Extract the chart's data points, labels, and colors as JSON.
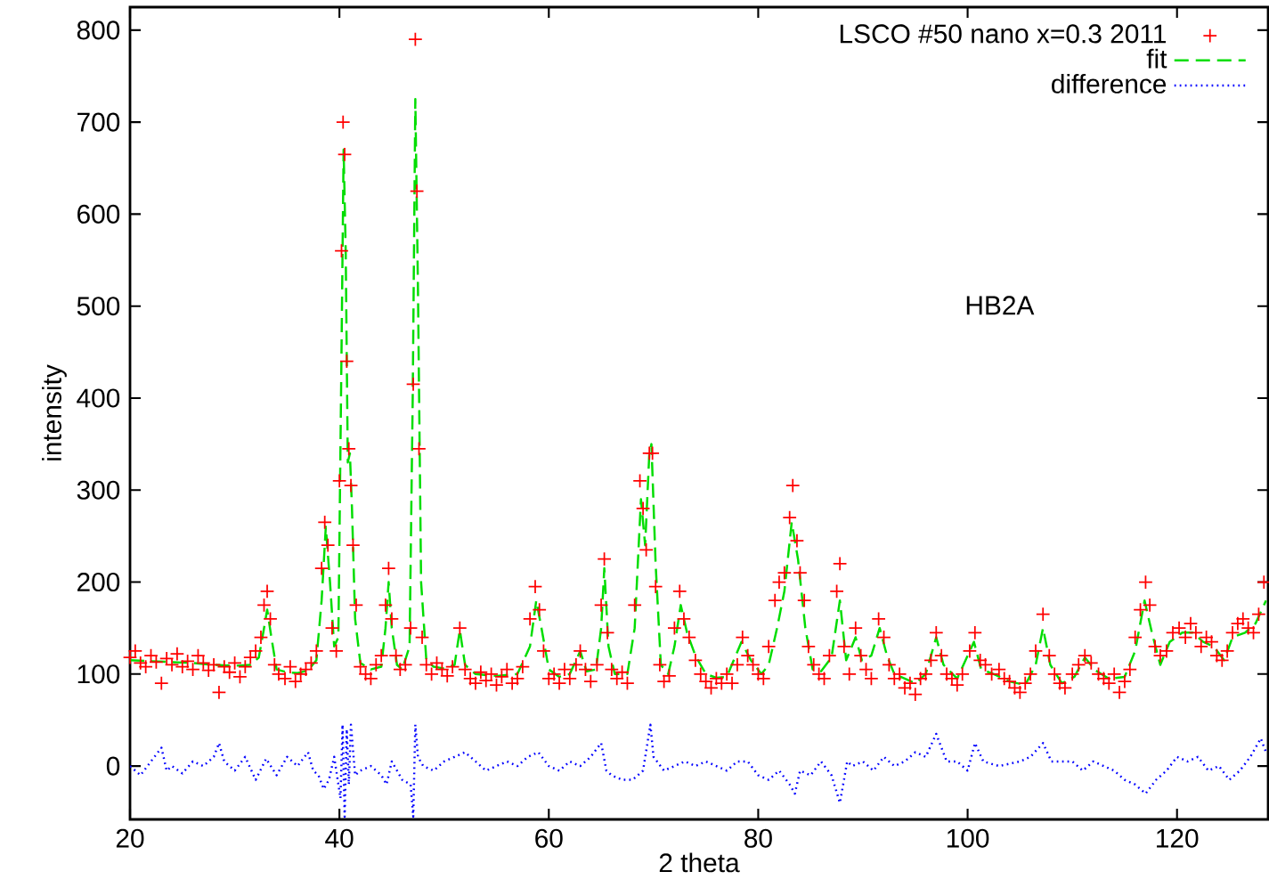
{
  "chart_data": {
    "type": "scatter",
    "xlabel": "2 theta",
    "ylabel": "intensity",
    "xlim": [
      20,
      128.7
    ],
    "ylim": [
      -58,
      825
    ],
    "xticks": [
      20,
      40,
      60,
      80,
      100,
      120
    ],
    "yticks": [
      0,
      100,
      200,
      300,
      400,
      500,
      600,
      700,
      800
    ],
    "grid": false,
    "legend": "top right",
    "annotations": [
      "HB2A"
    ],
    "series": [
      {
        "name": "LSCO #50 nano x=0.3 2011",
        "marker": "cross",
        "color": "#ff0000",
        "x": [
          20,
          20.5,
          21,
          21.5,
          22,
          22.5,
          23,
          23.5,
          24,
          24.5,
          25,
          25.5,
          26,
          26.5,
          27,
          27.5,
          28,
          28.5,
          29,
          29.5,
          30,
          30.5,
          31,
          31.5,
          32,
          32.5,
          32.8,
          33.1,
          33.4,
          33.8,
          34.2,
          34.8,
          35.3,
          35.8,
          36.3,
          36.8,
          37.3,
          37.8,
          38.3,
          38.6,
          38.9,
          39.3,
          39.7,
          40.0,
          40.2,
          40.35,
          40.5,
          40.7,
          40.9,
          41.1,
          41.3,
          41.6,
          42,
          42.5,
          43,
          43.5,
          44,
          44.4,
          44.7,
          45,
          45.4,
          45.8,
          46.3,
          46.8,
          47.05,
          47.25,
          47.4,
          47.6,
          47.9,
          48.3,
          48.8,
          49.3,
          49.8,
          50.3,
          50.8,
          51.5,
          52,
          52.5,
          53,
          53.5,
          54,
          54.5,
          55,
          55.5,
          56,
          56.5,
          57,
          57.5,
          58.2,
          58.7,
          59.1,
          59.5,
          60,
          60.5,
          61,
          61.5,
          62,
          62.6,
          63,
          63.5,
          64,
          64.6,
          65.0,
          65.3,
          65.6,
          66.0,
          66.5,
          67,
          67.5,
          68.2,
          68.7,
          69.0,
          69.3,
          69.6,
          69.9,
          70.2,
          70.6,
          71,
          71.5,
          72,
          72.5,
          72.9,
          73.4,
          74,
          74.5,
          75,
          75.5,
          76,
          76.5,
          77,
          77.5,
          78,
          78.5,
          79,
          79.5,
          80,
          80.5,
          81,
          81.6,
          82,
          82.5,
          83,
          83.3,
          83.7,
          84,
          84.4,
          84.8,
          85.3,
          85.8,
          86.3,
          86.8,
          87.5,
          87.8,
          88.2,
          88.7,
          89.3,
          89.8,
          90.3,
          90.8,
          91.5,
          92,
          92.5,
          93,
          93.5,
          94,
          94.5,
          95,
          95.5,
          96,
          96.5,
          97,
          97.5,
          98,
          98.5,
          99,
          99.5,
          100.2,
          100.7,
          101.2,
          101.7,
          102.3,
          103,
          103.5,
          104,
          104.5,
          105,
          105.5,
          106,
          106.5,
          107.2,
          107.8,
          108.3,
          108.8,
          109.3,
          110,
          110.6,
          111.2,
          111.8,
          112.5,
          113,
          113.5,
          114,
          114.5,
          115,
          115.5,
          116,
          116.5,
          117,
          117.4,
          117.9,
          118.4,
          119,
          119.6,
          120.2,
          120.8,
          121.3,
          121.8,
          122.3,
          122.8,
          123.3,
          123.8,
          124.3,
          124.8,
          125.3,
          125.8,
          126.3,
          126.8,
          127.3,
          127.8,
          128.3
        ],
        "values": [
          118,
          125,
          112,
          108,
          120,
          113,
          90,
          117,
          110,
          122,
          108,
          114,
          105,
          120,
          112,
          104,
          110,
          80,
          108,
          102,
          112,
          97,
          108,
          118,
          125,
          140,
          175,
          190,
          160,
          110,
          100,
          95,
          108,
          92,
          100,
          105,
          112,
          125,
          215,
          265,
          240,
          150,
          125,
          310,
          560,
          700,
          665,
          440,
          345,
          305,
          240,
          175,
          108,
          100,
          95,
          110,
          120,
          175,
          215,
          160,
          120,
          105,
          110,
          150,
          415,
          790,
          625,
          345,
          140,
          110,
          100,
          112,
          105,
          98,
          108,
          150,
          105,
          95,
          90,
          102,
          93,
          100,
          88,
          97,
          105,
          90,
          95,
          108,
          160,
          195,
          170,
          125,
          95,
          100,
          90,
          105,
          95,
          110,
          125,
          105,
          92,
          110,
          175,
          225,
          145,
          105,
          95,
          102,
          90,
          175,
          310,
          280,
          235,
          340,
          340,
          195,
          110,
          92,
          98,
          150,
          190,
          160,
          140,
          115,
          100,
          92,
          85,
          95,
          90,
          100,
          90,
          110,
          140,
          120,
          110,
          100,
          95,
          130,
          180,
          200,
          210,
          270,
          305,
          245,
          210,
          180,
          130,
          110,
          100,
          95,
          120,
          190,
          220,
          130,
          100,
          150,
          120,
          105,
          95,
          160,
          140,
          110,
          95,
          100,
          85,
          90,
          78,
          95,
          100,
          115,
          145,
          120,
          100,
          95,
          88,
          100,
          125,
          145,
          115,
          110,
          100,
          105,
          95,
          92,
          85,
          80,
          90,
          100,
          125,
          165,
          120,
          100,
          90,
          85,
          100,
          110,
          120,
          112,
          100,
          95,
          90,
          100,
          80,
          92,
          105,
          140,
          170,
          200,
          175,
          130,
          120,
          125,
          145,
          150,
          140,
          155,
          145,
          130,
          140,
          135,
          120,
          115,
          125,
          145,
          155,
          160,
          150,
          145,
          165,
          200
        ]
      },
      {
        "name": "fit",
        "type": "line",
        "line_style": "dashed",
        "color": "#00dd00",
        "x": [
          20,
          22,
          24,
          26,
          28,
          30,
          31.5,
          32.3,
          32.8,
          33.1,
          33.5,
          34,
          35,
          36,
          37,
          37.8,
          38.3,
          38.7,
          39.1,
          39.5,
          39.9,
          40.2,
          40.4,
          40.6,
          40.8,
          41.0,
          41.2,
          41.5,
          42,
          43,
          44,
          44.4,
          44.7,
          45,
          45.5,
          46,
          46.7,
          47.0,
          47.25,
          47.5,
          47.8,
          48.3,
          49,
          50,
          51,
          51.5,
          52,
          53,
          55,
          57,
          58.2,
          58.8,
          59.3,
          60,
          61,
          62,
          63,
          63.6,
          64.5,
          65.0,
          65.3,
          65.7,
          66.3,
          67.5,
          68.2,
          68.8,
          69.2,
          69.6,
          69.8,
          70.2,
          70.7,
          71.4,
          72,
          72.6,
          73.2,
          74,
          75,
          76,
          77,
          78.4,
          79.3,
          80.3,
          81,
          81.8,
          82.5,
          83.2,
          83.8,
          84.5,
          85.2,
          86,
          87,
          87.8,
          88.4,
          89.3,
          89.9,
          90.8,
          91.6,
          92.3,
          93,
          94,
          95,
          96,
          97,
          97.7,
          99,
          100.6,
          101.3,
          102.5,
          104,
          105.5,
          106.5,
          107.2,
          107.9,
          109,
          110.2,
          111.2,
          112.2,
          113.5,
          115,
          116,
          116.9,
          117.6,
          118.4,
          119.3,
          120.5,
          121.5,
          122.5,
          123.5,
          124.5,
          125.3,
          126.5,
          127.5,
          128.5
        ],
        "values": [
          115,
          114,
          113,
          112,
          110,
          109,
          110,
          118,
          150,
          170,
          140,
          105,
          102,
          101,
          104,
          115,
          180,
          260,
          200,
          130,
          140,
          450,
          670,
          560,
          330,
          340,
          280,
          160,
          112,
          105,
          108,
          150,
          200,
          150,
          110,
          105,
          130,
          400,
          725,
          520,
          200,
          115,
          108,
          106,
          110,
          148,
          110,
          100,
          98,
          100,
          130,
          180,
          150,
          105,
          97,
          100,
          125,
          103,
          105,
          150,
          215,
          130,
          100,
          100,
          150,
          290,
          240,
          340,
          350,
          220,
          110,
          100,
          130,
          175,
          145,
          120,
          100,
          96,
          97,
          135,
          115,
          100,
          110,
          150,
          190,
          265,
          225,
          150,
          105,
          103,
          118,
          180,
          115,
          140,
          115,
          120,
          150,
          120,
          100,
          95,
          90,
          100,
          140,
          110,
          95,
          135,
          105,
          100,
          92,
          88,
          110,
          150,
          110,
          90,
          97,
          118,
          104,
          95,
          97,
          125,
          180,
          145,
          110,
          135,
          145,
          145,
          135,
          130,
          115,
          140,
          145,
          155,
          180
        ]
      },
      {
        "name": "difference",
        "type": "line",
        "line_style": "dotted",
        "color": "#0000ff",
        "x": [
          20,
          21,
          22,
          23,
          23.5,
          24,
          25,
          26,
          27,
          28,
          28.5,
          29,
          30,
          31,
          32,
          33,
          34,
          35,
          36,
          37,
          37.5,
          38,
          38.5,
          39,
          39.5,
          40.1,
          40.3,
          40.5,
          40.7,
          40.9,
          41.1,
          41.5,
          42,
          43,
          44,
          44.5,
          45,
          46,
          46.8,
          47.05,
          47.25,
          47.5,
          48,
          49,
          50,
          51,
          52,
          53,
          54,
          55,
          56,
          57,
          58,
          59,
          60,
          61,
          62,
          63,
          64,
          65,
          65.5,
          66,
          67,
          68,
          69,
          69.7,
          70,
          71,
          72,
          73,
          74,
          75,
          76,
          77,
          78,
          79,
          80,
          81,
          82,
          83,
          83.5,
          84,
          85,
          86,
          87,
          87.8,
          88.5,
          89,
          90,
          91,
          92,
          93,
          94,
          95,
          96,
          97,
          98,
          99,
          100,
          100.7,
          101.5,
          103,
          105,
          106,
          107.2,
          108,
          110,
          111,
          112,
          113,
          114,
          115,
          116,
          117,
          118,
          119,
          120,
          121,
          122,
          123,
          124,
          125,
          126,
          127,
          128,
          128.5
        ],
        "values": [
          0,
          -10,
          5,
          20,
          -5,
          0,
          -8,
          5,
          0,
          10,
          25,
          5,
          -5,
          10,
          -15,
          8,
          -10,
          10,
          0,
          15,
          -5,
          -10,
          -25,
          -15,
          10,
          -35,
          45,
          -55,
          40,
          -20,
          45,
          -10,
          -5,
          0,
          -10,
          -20,
          5,
          -15,
          -20,
          -55,
          45,
          10,
          0,
          -5,
          5,
          10,
          15,
          5,
          -5,
          0,
          5,
          0,
          10,
          15,
          0,
          -5,
          5,
          0,
          10,
          25,
          -5,
          -10,
          -15,
          -15,
          -5,
          45,
          10,
          -5,
          0,
          5,
          0,
          5,
          0,
          -5,
          5,
          5,
          -10,
          -15,
          -5,
          -20,
          -30,
          -5,
          -10,
          5,
          -10,
          -40,
          5,
          0,
          5,
          -5,
          10,
          0,
          5,
          15,
          10,
          35,
          5,
          5,
          -5,
          25,
          5,
          0,
          5,
          10,
          25,
          5,
          5,
          -5,
          5,
          0,
          -5,
          -15,
          -20,
          -30,
          -15,
          -5,
          10,
          5,
          10,
          -5,
          0,
          -15,
          -5,
          10,
          30,
          15
        ]
      }
    ]
  }
}
